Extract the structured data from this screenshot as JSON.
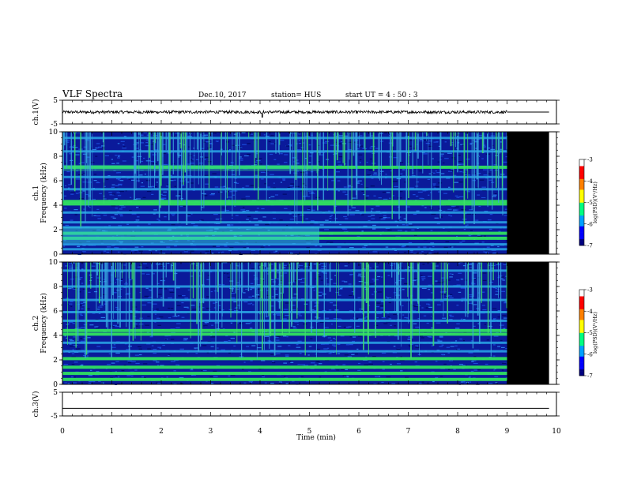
{
  "header": {
    "title": "VLF Spectra",
    "date": "Dec.10, 2017",
    "station": "station= HUS",
    "start": "start  UT =   4 : 50 : 3"
  },
  "chart_data": [
    {
      "type": "line",
      "name": "ch1-waveform",
      "ylabel": "ch.1(V)",
      "ylim": [
        -5,
        5
      ],
      "yticks": [
        "5",
        "-5"
      ],
      "xlim": [
        0,
        10
      ],
      "data_end_min": 9.0,
      "flat_until_min": 9.85,
      "level": 0,
      "noise_amplitude": 0.6
    },
    {
      "type": "heatmap",
      "name": "ch1-spectrogram",
      "ylabel": "ch.1\nFrequency (kHz)",
      "ylim": [
        0,
        10
      ],
      "yticks": [
        "0",
        "2",
        "4",
        "6",
        "8",
        "10"
      ],
      "xlim": [
        0,
        10
      ],
      "data_end_min": 9.0,
      "blank_until_min": 9.85,
      "bands_khz": [
        0.4,
        0.8,
        1.3,
        1.7,
        2.2,
        2.6,
        3.4,
        4.1,
        4.3,
        5.3,
        6.3,
        7.1,
        8.4,
        9.5
      ],
      "bright_bands_khz": [
        1.3,
        1.7,
        4.1,
        4.3,
        7.1
      ],
      "colorbar": {
        "label": "log(PSD)(V²/Hz)",
        "min": -7,
        "max": -3,
        "ticks": [
          "-3",
          "-4",
          "-5",
          "-6",
          "-7"
        ]
      }
    },
    {
      "type": "heatmap",
      "name": "ch2-spectrogram",
      "ylabel": "ch.2\nFrequency (kHz)",
      "ylim": [
        0,
        10
      ],
      "yticks": [
        "0",
        "2",
        "4",
        "6",
        "8",
        "10"
      ],
      "xlim": [
        0,
        10
      ],
      "data_end_min": 9.0,
      "blank_until_min": 9.85,
      "bands_khz": [
        0.4,
        0.9,
        1.4,
        2.1,
        2.7,
        3.4,
        4.1,
        4.4,
        5.2,
        5.9,
        6.9,
        8.0,
        9.3
      ],
      "bright_bands_khz": [
        0.4,
        0.9,
        1.4,
        2.1,
        4.1,
        4.4
      ],
      "colorbar": {
        "label": "log(PSD)(V²/Hz)",
        "min": -7,
        "max": -3,
        "ticks": [
          "-3",
          "-4",
          "-5",
          "-6",
          "-7"
        ]
      }
    },
    {
      "type": "line",
      "name": "ch3-waveform",
      "ylabel": "ch.3(V)",
      "ylim": [
        -5,
        5
      ],
      "yticks": [
        "5",
        "-5"
      ],
      "xlim": [
        0,
        10
      ],
      "flat_until_min": 9.85,
      "level": -1.8
    }
  ],
  "xaxis": {
    "label": "Time  (min)",
    "ticks": [
      "0",
      "1",
      "2",
      "3",
      "4",
      "5",
      "6",
      "7",
      "8",
      "9",
      "10"
    ]
  }
}
